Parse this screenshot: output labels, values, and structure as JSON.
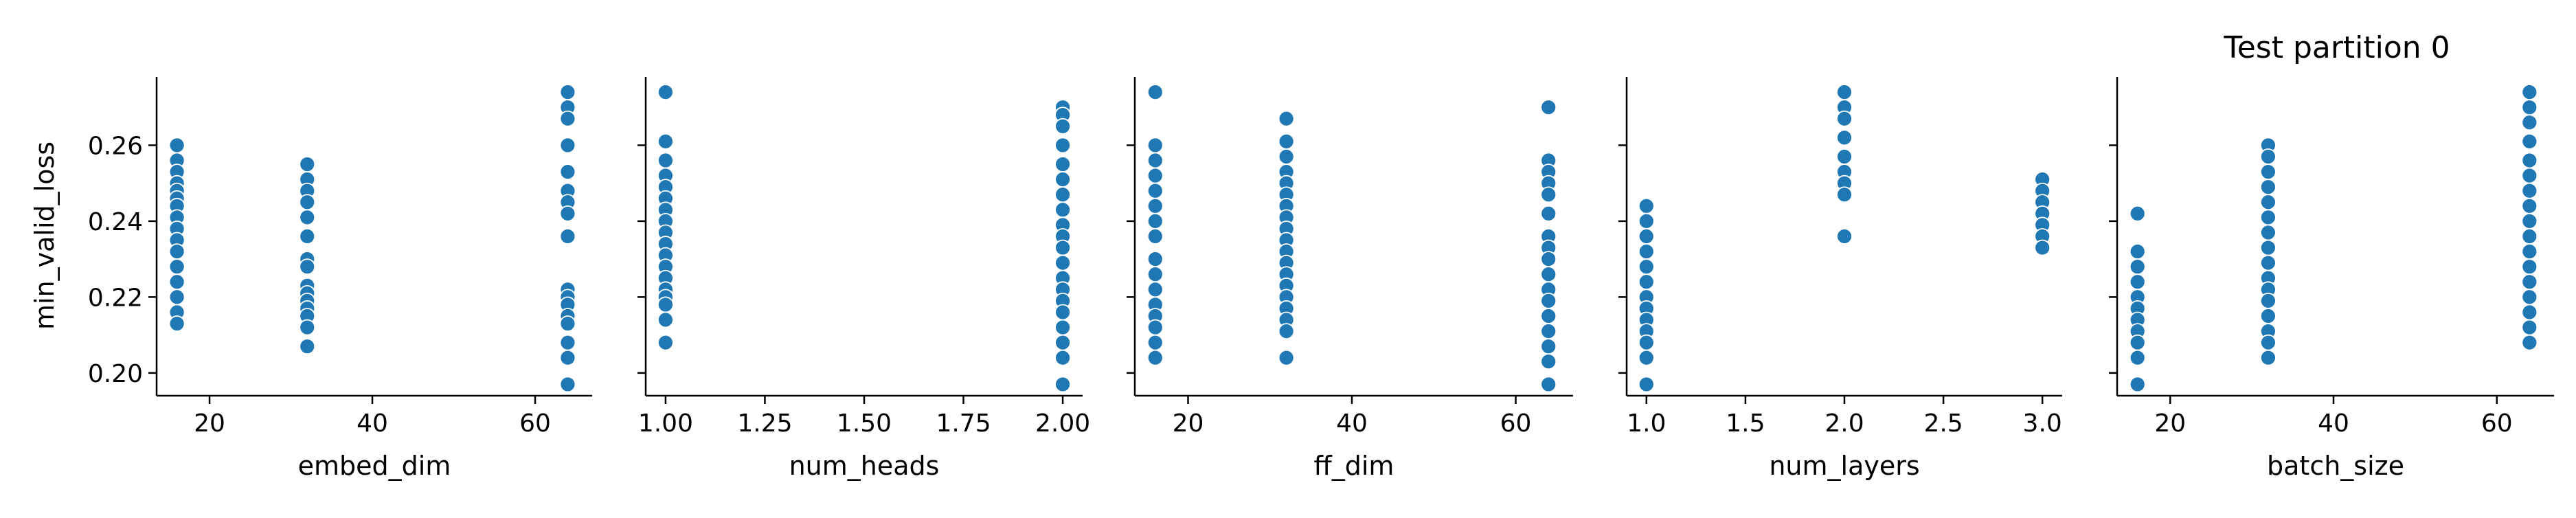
{
  "chart_data": {
    "type": "scatter",
    "title": "Test partition 0",
    "ylabel": "min_valid_loss",
    "ylim": [
      0.194,
      0.278
    ],
    "yticks": [
      0.2,
      0.22,
      0.24,
      0.26
    ],
    "ytick_labels": [
      "0.20",
      "0.22",
      "0.24",
      "0.26"
    ],
    "grid": false,
    "point_color": "#1f77b4",
    "panels": [
      {
        "xlabel": "embed_dim",
        "xlim": [
          13.5,
          67
        ],
        "xticks": [
          20,
          40,
          60
        ],
        "xtick_labels": [
          "20",
          "40",
          "60"
        ],
        "points": [
          [
            16,
            0.26
          ],
          [
            16,
            0.256
          ],
          [
            16,
            0.253
          ],
          [
            16,
            0.25
          ],
          [
            16,
            0.248
          ],
          [
            16,
            0.246
          ],
          [
            16,
            0.244
          ],
          [
            16,
            0.241
          ],
          [
            16,
            0.238
          ],
          [
            16,
            0.235
          ],
          [
            16,
            0.232
          ],
          [
            16,
            0.228
          ],
          [
            16,
            0.224
          ],
          [
            16,
            0.22
          ],
          [
            16,
            0.216
          ],
          [
            16,
            0.213
          ],
          [
            32,
            0.255
          ],
          [
            32,
            0.251
          ],
          [
            32,
            0.248
          ],
          [
            32,
            0.245
          ],
          [
            32,
            0.241
          ],
          [
            32,
            0.236
          ],
          [
            32,
            0.23
          ],
          [
            32,
            0.228
          ],
          [
            32,
            0.223
          ],
          [
            32,
            0.221
          ],
          [
            32,
            0.219
          ],
          [
            32,
            0.217
          ],
          [
            32,
            0.215
          ],
          [
            32,
            0.212
          ],
          [
            32,
            0.207
          ],
          [
            64,
            0.274
          ],
          [
            64,
            0.27
          ],
          [
            64,
            0.267
          ],
          [
            64,
            0.26
          ],
          [
            64,
            0.253
          ],
          [
            64,
            0.248
          ],
          [
            64,
            0.245
          ],
          [
            64,
            0.242
          ],
          [
            64,
            0.236
          ],
          [
            64,
            0.222
          ],
          [
            64,
            0.22
          ],
          [
            64,
            0.218
          ],
          [
            64,
            0.215
          ],
          [
            64,
            0.213
          ],
          [
            64,
            0.208
          ],
          [
            64,
            0.204
          ],
          [
            64,
            0.197
          ]
        ]
      },
      {
        "xlabel": "num_heads",
        "xlim": [
          0.95,
          2.05
        ],
        "xticks": [
          1.0,
          1.25,
          1.5,
          1.75,
          2.0
        ],
        "xtick_labels": [
          "1.00",
          "1.25",
          "1.50",
          "1.75",
          "2.00"
        ],
        "points": [
          [
            1,
            0.274
          ],
          [
            1,
            0.261
          ],
          [
            1,
            0.256
          ],
          [
            1,
            0.252
          ],
          [
            1,
            0.249
          ],
          [
            1,
            0.246
          ],
          [
            1,
            0.243
          ],
          [
            1,
            0.24
          ],
          [
            1,
            0.237
          ],
          [
            1,
            0.234
          ],
          [
            1,
            0.231
          ],
          [
            1,
            0.228
          ],
          [
            1,
            0.225
          ],
          [
            1,
            0.222
          ],
          [
            1,
            0.22
          ],
          [
            1,
            0.218
          ],
          [
            1,
            0.214
          ],
          [
            1,
            0.208
          ],
          [
            2,
            0.27
          ],
          [
            2,
            0.268
          ],
          [
            2,
            0.265
          ],
          [
            2,
            0.26
          ],
          [
            2,
            0.255
          ],
          [
            2,
            0.251
          ],
          [
            2,
            0.247
          ],
          [
            2,
            0.243
          ],
          [
            2,
            0.239
          ],
          [
            2,
            0.236
          ],
          [
            2,
            0.233
          ],
          [
            2,
            0.229
          ],
          [
            2,
            0.225
          ],
          [
            2,
            0.222
          ],
          [
            2,
            0.219
          ],
          [
            2,
            0.216
          ],
          [
            2,
            0.212
          ],
          [
            2,
            0.208
          ],
          [
            2,
            0.204
          ],
          [
            2,
            0.197
          ]
        ]
      },
      {
        "xlabel": "ff_dim",
        "xlim": [
          13.5,
          67
        ],
        "xticks": [
          20,
          40,
          60
        ],
        "xtick_labels": [
          "20",
          "40",
          "60"
        ],
        "points": [
          [
            16,
            0.274
          ],
          [
            16,
            0.26
          ],
          [
            16,
            0.256
          ],
          [
            16,
            0.252
          ],
          [
            16,
            0.248
          ],
          [
            16,
            0.244
          ],
          [
            16,
            0.24
          ],
          [
            16,
            0.236
          ],
          [
            16,
            0.23
          ],
          [
            16,
            0.226
          ],
          [
            16,
            0.222
          ],
          [
            16,
            0.218
          ],
          [
            16,
            0.215
          ],
          [
            16,
            0.212
          ],
          [
            16,
            0.208
          ],
          [
            16,
            0.204
          ],
          [
            32,
            0.267
          ],
          [
            32,
            0.261
          ],
          [
            32,
            0.257
          ],
          [
            32,
            0.253
          ],
          [
            32,
            0.25
          ],
          [
            32,
            0.247
          ],
          [
            32,
            0.244
          ],
          [
            32,
            0.241
          ],
          [
            32,
            0.238
          ],
          [
            32,
            0.235
          ],
          [
            32,
            0.232
          ],
          [
            32,
            0.229
          ],
          [
            32,
            0.226
          ],
          [
            32,
            0.223
          ],
          [
            32,
            0.22
          ],
          [
            32,
            0.217
          ],
          [
            32,
            0.214
          ],
          [
            32,
            0.211
          ],
          [
            32,
            0.204
          ],
          [
            64,
            0.27
          ],
          [
            64,
            0.256
          ],
          [
            64,
            0.253
          ],
          [
            64,
            0.25
          ],
          [
            64,
            0.247
          ],
          [
            64,
            0.242
          ],
          [
            64,
            0.236
          ],
          [
            64,
            0.233
          ],
          [
            64,
            0.23
          ],
          [
            64,
            0.226
          ],
          [
            64,
            0.222
          ],
          [
            64,
            0.219
          ],
          [
            64,
            0.215
          ],
          [
            64,
            0.211
          ],
          [
            64,
            0.207
          ],
          [
            64,
            0.203
          ],
          [
            64,
            0.197
          ]
        ]
      },
      {
        "xlabel": "num_layers",
        "xlim": [
          0.9,
          3.1
        ],
        "xticks": [
          1.0,
          1.5,
          2.0,
          2.5,
          3.0
        ],
        "xtick_labels": [
          "1.0",
          "1.5",
          "2.0",
          "2.5",
          "3.0"
        ],
        "points": [
          [
            1,
            0.244
          ],
          [
            1,
            0.24
          ],
          [
            1,
            0.236
          ],
          [
            1,
            0.232
          ],
          [
            1,
            0.228
          ],
          [
            1,
            0.224
          ],
          [
            1,
            0.22
          ],
          [
            1,
            0.217
          ],
          [
            1,
            0.214
          ],
          [
            1,
            0.211
          ],
          [
            1,
            0.208
          ],
          [
            1,
            0.204
          ],
          [
            1,
            0.197
          ],
          [
            2,
            0.274
          ],
          [
            2,
            0.27
          ],
          [
            2,
            0.267
          ],
          [
            2,
            0.262
          ],
          [
            2,
            0.257
          ],
          [
            2,
            0.253
          ],
          [
            2,
            0.25
          ],
          [
            2,
            0.247
          ],
          [
            2,
            0.236
          ],
          [
            3,
            0.251
          ],
          [
            3,
            0.248
          ],
          [
            3,
            0.245
          ],
          [
            3,
            0.242
          ],
          [
            3,
            0.239
          ],
          [
            3,
            0.236
          ],
          [
            3,
            0.233
          ]
        ]
      },
      {
        "xlabel": "batch_size",
        "xlim": [
          13.5,
          67
        ],
        "xticks": [
          20,
          40,
          60
        ],
        "xtick_labels": [
          "20",
          "40",
          "60"
        ],
        "points": [
          [
            16,
            0.242
          ],
          [
            16,
            0.232
          ],
          [
            16,
            0.228
          ],
          [
            16,
            0.224
          ],
          [
            16,
            0.22
          ],
          [
            16,
            0.217
          ],
          [
            16,
            0.214
          ],
          [
            16,
            0.211
          ],
          [
            16,
            0.208
          ],
          [
            16,
            0.204
          ],
          [
            16,
            0.197
          ],
          [
            32,
            0.26
          ],
          [
            32,
            0.257
          ],
          [
            32,
            0.253
          ],
          [
            32,
            0.249
          ],
          [
            32,
            0.245
          ],
          [
            32,
            0.241
          ],
          [
            32,
            0.237
          ],
          [
            32,
            0.233
          ],
          [
            32,
            0.229
          ],
          [
            32,
            0.225
          ],
          [
            32,
            0.222
          ],
          [
            32,
            0.219
          ],
          [
            32,
            0.215
          ],
          [
            32,
            0.211
          ],
          [
            32,
            0.208
          ],
          [
            32,
            0.204
          ],
          [
            64,
            0.274
          ],
          [
            64,
            0.27
          ],
          [
            64,
            0.266
          ],
          [
            64,
            0.261
          ],
          [
            64,
            0.256
          ],
          [
            64,
            0.252
          ],
          [
            64,
            0.248
          ],
          [
            64,
            0.244
          ],
          [
            64,
            0.24
          ],
          [
            64,
            0.236
          ],
          [
            64,
            0.232
          ],
          [
            64,
            0.228
          ],
          [
            64,
            0.224
          ],
          [
            64,
            0.22
          ],
          [
            64,
            0.216
          ],
          [
            64,
            0.212
          ],
          [
            64,
            0.208
          ]
        ]
      }
    ]
  }
}
